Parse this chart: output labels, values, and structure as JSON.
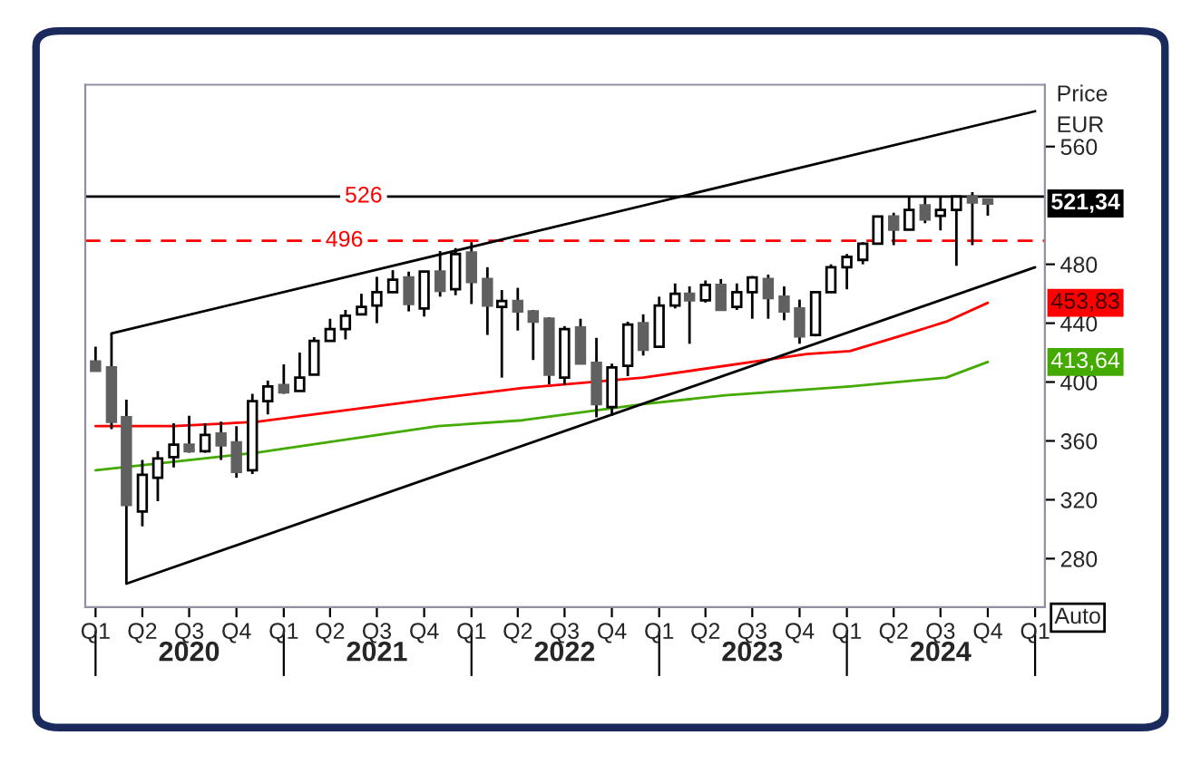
{
  "chart_data": {
    "type": "candlestick",
    "ylabel": "Price\nEUR",
    "x": [
      "2020-01",
      "2020-02",
      "2020-03",
      "2020-04",
      "2020-05",
      "2020-06",
      "2020-07",
      "2020-08",
      "2020-09",
      "2020-10",
      "2020-11",
      "2020-12",
      "2021-01",
      "2021-02",
      "2021-03",
      "2021-04",
      "2021-05",
      "2021-06",
      "2021-07",
      "2021-08",
      "2021-09",
      "2021-10",
      "2021-11",
      "2021-12",
      "2022-01",
      "2022-02",
      "2022-03",
      "2022-04",
      "2022-05",
      "2022-06",
      "2022-07",
      "2022-08",
      "2022-09",
      "2022-10",
      "2022-11",
      "2022-12",
      "2023-01",
      "2023-02",
      "2023-03",
      "2023-04",
      "2023-05",
      "2023-06",
      "2023-07",
      "2023-08",
      "2023-09",
      "2023-10",
      "2023-11",
      "2023-12",
      "2024-01",
      "2024-02",
      "2024-03",
      "2024-04",
      "2024-05",
      "2024-06",
      "2024-07",
      "2024-08",
      "2024-09",
      "2024-10"
    ],
    "ohlc": [
      [
        414,
        424,
        407.6,
        407.6
      ],
      [
        410,
        433,
        368,
        373
      ],
      [
        376,
        388,
        263,
        316.5
      ],
      [
        312,
        347,
        302,
        337
      ],
      [
        335,
        353,
        319,
        348
      ],
      [
        349,
        372,
        342,
        357.5
      ],
      [
        357.5,
        377,
        352,
        353
      ],
      [
        353,
        372,
        352,
        364
      ],
      [
        365,
        373,
        347,
        357
      ],
      [
        359,
        370,
        335,
        339
      ],
      [
        340,
        392,
        337.5,
        387
      ],
      [
        387,
        401,
        378,
        397
      ],
      [
        398,
        412,
        392,
        393
      ],
      [
        394,
        420,
        394,
        403
      ],
      [
        405,
        430.5,
        405,
        428
      ],
      [
        428,
        443,
        428,
        436
      ],
      [
        436,
        449,
        429,
        445
      ],
      [
        446,
        460,
        446,
        451
      ],
      [
        452,
        471.5,
        440,
        461
      ],
      [
        461,
        476,
        461,
        469.5
      ],
      [
        471,
        475,
        448,
        453
      ],
      [
        450,
        475,
        444.5,
        475
      ],
      [
        475,
        489,
        458,
        462
      ],
      [
        463,
        491,
        459,
        487
      ],
      [
        488,
        495,
        453,
        468
      ],
      [
        470,
        478,
        432,
        452
      ],
      [
        451,
        462.5,
        403,
        455
      ],
      [
        455,
        464,
        435,
        448
      ],
      [
        448,
        449,
        415,
        441
      ],
      [
        443,
        444,
        398.5,
        405
      ],
      [
        403,
        438,
        398,
        436
      ],
      [
        437,
        443,
        412.5,
        412.5
      ],
      [
        413,
        430,
        376,
        385
      ],
      [
        383,
        412.5,
        377,
        410
      ],
      [
        411,
        441,
        404,
        439
      ],
      [
        440,
        446,
        418,
        422
      ],
      [
        424,
        458,
        424,
        452
      ],
      [
        452,
        467,
        450,
        460
      ],
      [
        460,
        465,
        426,
        455.5
      ],
      [
        455.5,
        469,
        454,
        466
      ],
      [
        466,
        470,
        449,
        449
      ],
      [
        451,
        467,
        449,
        461
      ],
      [
        461,
        472,
        443,
        471
      ],
      [
        470,
        473,
        443,
        457
      ],
      [
        458,
        465,
        442,
        448
      ],
      [
        450,
        456,
        426,
        431
      ],
      [
        432,
        461,
        431,
        461
      ],
      [
        461,
        480,
        461,
        478
      ],
      [
        478,
        487,
        463,
        485
      ],
      [
        483,
        495,
        480,
        494
      ],
      [
        494,
        512.5,
        494,
        512.5
      ],
      [
        512.5,
        515,
        493,
        503.5
      ],
      [
        503.5,
        526,
        503,
        517
      ],
      [
        520,
        526,
        508,
        510.5
      ],
      [
        513,
        526,
        503,
        517
      ],
      [
        517,
        526,
        479,
        526
      ],
      [
        526,
        529,
        493,
        522
      ],
      [
        524,
        524,
        513,
        521.34
      ]
    ],
    "series": [
      {
        "type": "line",
        "color": "#ff0000",
        "x": [
          "2020-01",
          "2020-06",
          "2020-11-10",
          "2021-10-28",
          "2022-04-10",
          "2022-12-01",
          "2023-10-15",
          "2024-01-07",
          "2024-04-20",
          "2024-07-12",
          "2024-10"
        ],
        "values": [
          370,
          370,
          373,
          389,
          396,
          403,
          419,
          421,
          432,
          441,
          453.83
        ]
      },
      {
        "type": "line",
        "color": "#44aa00",
        "x": [
          "2020-01",
          "2020-11-10",
          "2021-10-28",
          "2022-04-10",
          "2022-12-01",
          "2023-05-10",
          "2024-01-07",
          "2024-07-12",
          "2024-10"
        ],
        "values": [
          340,
          352,
          370,
          374,
          385,
          391,
          397,
          403,
          413.64
        ]
      },
      {
        "type": "line",
        "color": "#000000",
        "x": [
          "2020-02",
          "2025-01"
        ],
        "values": [
          433,
          584
        ]
      },
      {
        "type": "line",
        "color": "#000000",
        "x": [
          "2020-03",
          "2025-01"
        ],
        "values": [
          263,
          478
        ]
      }
    ],
    "ref_lines": [
      {
        "axis": "y",
        "value": 526,
        "label": "526",
        "color": "#000000",
        "line_style": "solid"
      },
      {
        "axis": "y",
        "value": 496,
        "label": "496",
        "color": "#ff0000",
        "line_style": "dashed"
      }
    ],
    "annotations": [
      {
        "text": "521,34",
        "x": "2024-10",
        "y": 521.34
      },
      {
        "text": "453,83",
        "x": "2024-10",
        "y": 453.83
      },
      {
        "text": "413,64",
        "x": "2024-10",
        "y": 413.64
      },
      "Auto"
    ],
    "xlim": [
      "2019-12-12",
      "2025-01-20"
    ],
    "xticks": [
      {
        "value": "2020-01",
        "label": "Q1"
      },
      {
        "value": "2020-04",
        "label": "Q2"
      },
      {
        "value": "2020-07",
        "label": "Q3"
      },
      {
        "value": "2020-10",
        "label": "Q4"
      },
      {
        "value": "2021-01",
        "label": "Q1"
      },
      {
        "value": "2021-04",
        "label": "Q2"
      },
      {
        "value": "2021-07",
        "label": "Q3"
      },
      {
        "value": "2021-10",
        "label": "Q4"
      },
      {
        "value": "2022-01",
        "label": "Q1"
      },
      {
        "value": "2022-04",
        "label": "Q2"
      },
      {
        "value": "2022-07",
        "label": "Q3"
      },
      {
        "value": "2022-10",
        "label": "Q4"
      },
      {
        "value": "2023-01",
        "label": "Q1"
      },
      {
        "value": "2023-04",
        "label": "Q2"
      },
      {
        "value": "2023-07",
        "label": "Q3"
      },
      {
        "value": "2023-10",
        "label": "Q4"
      },
      {
        "value": "2024-01",
        "label": "Q1"
      },
      {
        "value": "2024-04",
        "label": "Q2"
      },
      {
        "value": "2024-07",
        "label": "Q3"
      },
      {
        "value": "2024-10",
        "label": "Q4"
      },
      {
        "value": "2025-01",
        "label": "Q1"
      }
    ],
    "x2lim": [
      "2019-12-12",
      "2025-01-20"
    ],
    "x2ticks": [
      {
        "value": "2020-01",
        "label": null
      },
      {
        "value": "2020-07",
        "label": "2020"
      },
      {
        "value": "2021-01",
        "label": null
      },
      {
        "value": "2021-07",
        "label": "2021"
      },
      {
        "value": "2022-01",
        "label": null
      },
      {
        "value": "2022-07",
        "label": "2022"
      },
      {
        "value": "2023-01",
        "label": null
      },
      {
        "value": "2023-07",
        "label": "2023"
      },
      {
        "value": "2024-01",
        "label": null
      },
      {
        "value": "2024-07",
        "label": "2024"
      },
      {
        "value": "2025-01",
        "label": null
      }
    ],
    "ylim": [
      247,
      602
    ],
    "yticks": [
      280,
      320,
      360,
      400,
      440,
      480,
      560
    ],
    "grid": false,
    "legend": false
  }
}
